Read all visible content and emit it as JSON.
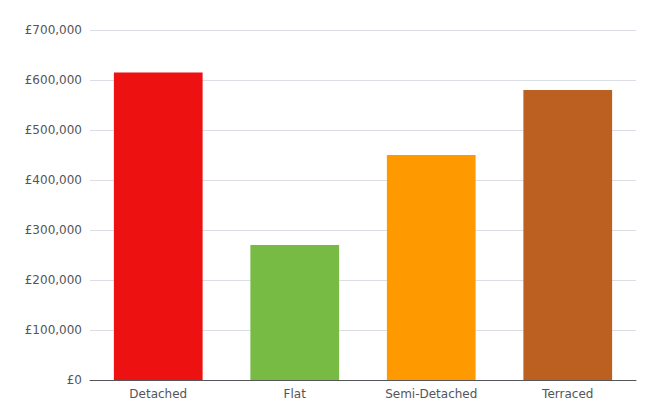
{
  "chart_data": {
    "type": "bar",
    "categories": [
      "Detached",
      "Flat",
      "Semi-Detached",
      "Terraced"
    ],
    "values": [
      615000,
      270000,
      450000,
      580000
    ],
    "colors": [
      "#ee1111",
      "#77bb44",
      "#ff9900",
      "#bb6020"
    ],
    "ylim": [
      0,
      700000
    ],
    "yticks": [
      {
        "value": 0,
        "label": "£0"
      },
      {
        "value": 100000,
        "label": "£100,000"
      },
      {
        "value": 200000,
        "label": "£200,000"
      },
      {
        "value": 300000,
        "label": "£300,000"
      },
      {
        "value": 400000,
        "label": "£400,000"
      },
      {
        "value": 500000,
        "label": "£500,000"
      },
      {
        "value": 600000,
        "label": "£600,000"
      },
      {
        "value": 700000,
        "label": "£700,000"
      }
    ],
    "grid": true
  }
}
